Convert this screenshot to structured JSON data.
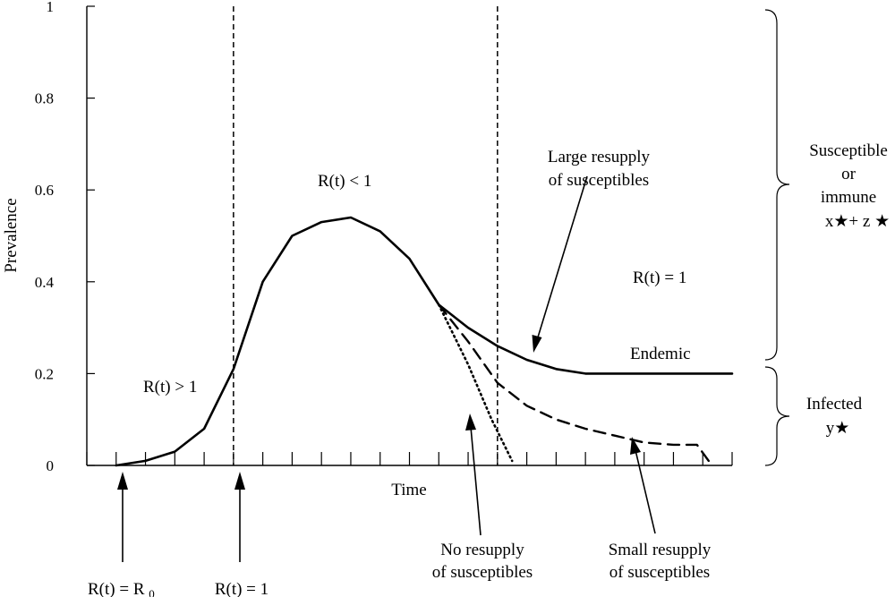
{
  "chart_data": {
    "type": "line",
    "xlabel": "Time",
    "ylabel": "Prevalence",
    "ylim": [
      0,
      1
    ],
    "xlim": [
      0,
      22
    ],
    "y_ticks": [
      "0",
      "0.2",
      "0.4",
      "0.6",
      "0.8",
      "1"
    ],
    "x_tick_count": 23,
    "grid": false,
    "series": [
      {
        "style": "solid",
        "x": [
          1,
          2,
          3,
          4,
          5,
          6,
          7,
          8,
          9,
          10,
          11,
          12,
          13,
          14,
          15,
          16,
          17,
          18,
          19,
          20,
          21,
          22
        ],
        "y": [
          0.0,
          0.01,
          0.03,
          0.08,
          0.21,
          0.4,
          0.5,
          0.53,
          0.54,
          0.51,
          0.45,
          0.35,
          0.3,
          0.26,
          0.23,
          0.21,
          0.2,
          0.2,
          0.2,
          0.2,
          0.2,
          0.2
        ]
      },
      {
        "style": "dashed",
        "x": [
          12,
          13,
          14,
          15,
          16,
          17,
          18,
          19,
          20,
          20.8,
          21.2
        ],
        "y": [
          0.35,
          0.27,
          0.18,
          0.13,
          0.1,
          0.08,
          0.065,
          0.05,
          0.045,
          0.045,
          0.01
        ]
      },
      {
        "style": "dotted",
        "x": [
          12,
          13,
          13.8,
          14.5
        ],
        "y": [
          0.35,
          0.22,
          0.1,
          0.01
        ]
      }
    ],
    "vertical_lines": [
      5,
      14
    ],
    "annotations": {
      "r_gt_1": "R(t) > 1",
      "r_lt_1": "R(t) < 1",
      "r_eq_1_region": "R(t) = 1",
      "endemic": "Endemic",
      "large_resupply_line1": "Large resupply",
      "large_resupply_line2": "of susceptibles",
      "no_resupply_line1": "No resupply",
      "no_resupply_line2": "of susceptibles",
      "small_resupply_line1": "Small resupply",
      "small_resupply_line2": "of susceptibles",
      "r0_label": "R(t) = R",
      "r0_subscript": "0",
      "r1_label": "R(t) = 1"
    },
    "braces": {
      "upper_line1": "Susceptible",
      "upper_line2": "or",
      "upper_line3": "immune",
      "upper_line4": "x★+ z ★",
      "lower_line1": "Infected",
      "lower_line2": "y★"
    }
  }
}
